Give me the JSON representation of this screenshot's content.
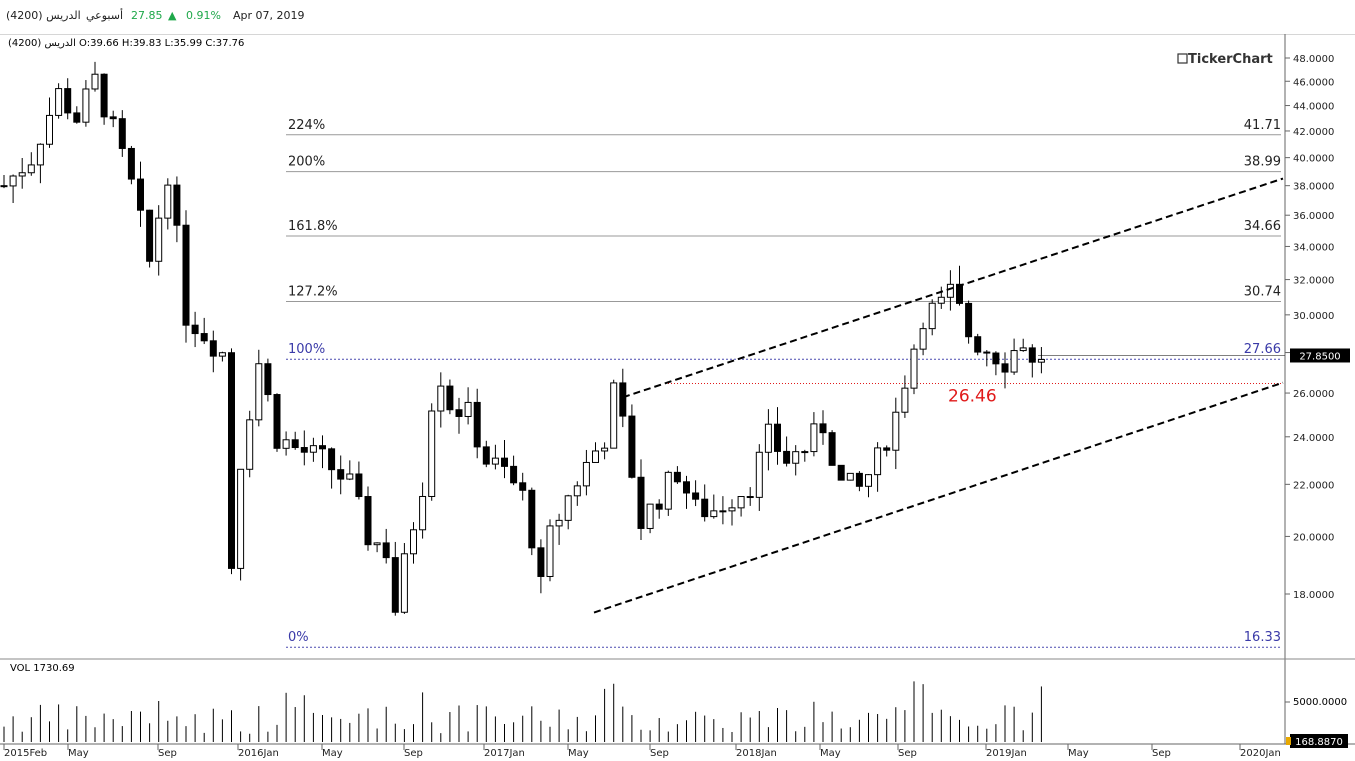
{
  "topbar": {
    "symbol": "الدريس (4200)",
    "period": "أسبوعي",
    "price": "27.85",
    "change": "0.91%",
    "date": "Apr 07, 2019"
  },
  "ohlc_label": "الدريس (4200)  O:39.66 H:39.83 L:35.99 C:37.76",
  "brand": "TickerChart",
  "current_price_tag": "27.8500",
  "annotation_text": "26.46",
  "volume": {
    "label": "VOL  1730.69",
    "tick_label": "5000.0000",
    "current_tag": "168.8870"
  },
  "colors": {
    "candle_up": "#ffffff",
    "candle_down": "#000000",
    "fib_label_blue": "#3a3aa8",
    "annotation_red": "#e01a1a",
    "positive_green": "#1fa84a",
    "grid_line": "#999999"
  },
  "chart_data": {
    "type": "candlestick",
    "x_axis_labels": [
      "2015Feb",
      "May",
      "Sep",
      "2016Jan",
      "May",
      "Sep",
      "2017Jan",
      "May",
      "Sep",
      "2018Jan",
      "May",
      "Sep",
      "2019Jan",
      "May",
      "Sep",
      "2020Jan"
    ],
    "y_ticks": [
      "48.0000",
      "46.0000",
      "44.0000",
      "42.0000",
      "40.0000",
      "38.0000",
      "36.0000",
      "34.0000",
      "32.0000",
      "30.0000",
      "28.0000",
      "26.0000",
      "24.0000",
      "22.0000",
      "20.0000",
      "18.0000"
    ],
    "y_tick_values": [
      48,
      46,
      44,
      42,
      40,
      38,
      36,
      34,
      32,
      30,
      28,
      26,
      24,
      22,
      20,
      18
    ],
    "y_scale": "log",
    "fib_levels": [
      {
        "pct": "224%",
        "value": "41.71",
        "v": 41.71
      },
      {
        "pct": "200%",
        "value": "38.99",
        "v": 38.99
      },
      {
        "pct": "161.8%",
        "value": "34.66",
        "v": 34.66
      },
      {
        "pct": "127.2%",
        "value": "30.74",
        "v": 30.74
      },
      {
        "pct": "100%",
        "value": "27.66",
        "v": 27.66
      },
      {
        "pct": "0%",
        "value": "16.33",
        "v": 16.33
      }
    ],
    "current_price": 27.85,
    "support_level": 26.46,
    "channel": {
      "upper": [
        [
          30,
          25.8
        ],
        [
          63,
          38.5
        ]
      ],
      "lower": [
        [
          30,
          17.4
        ],
        [
          63,
          26.5
        ]
      ]
    },
    "close_path": [
      [
        0,
        38
      ],
      [
        3,
        40
      ],
      [
        6,
        45
      ],
      [
        8,
        43
      ],
      [
        10,
        46
      ],
      [
        11,
        44
      ],
      [
        14,
        38
      ],
      [
        16,
        33
      ],
      [
        18,
        39
      ],
      [
        20,
        30
      ],
      [
        22,
        29
      ],
      [
        24,
        28
      ],
      [
        24.5,
        21
      ],
      [
        25,
        19
      ],
      [
        26,
        23
      ],
      [
        28,
        27.5
      ],
      [
        30,
        24
      ],
      [
        32,
        23.5
      ],
      [
        35,
        23
      ],
      [
        38,
        22
      ],
      [
        40,
        20
      ],
      [
        42,
        19.5
      ],
      [
        43,
        17.5
      ],
      [
        44,
        19
      ],
      [
        46,
        22
      ],
      [
        47.5,
        27.5
      ],
      [
        49,
        25.5
      ],
      [
        51,
        25
      ],
      [
        53,
        23
      ],
      [
        55,
        22.5
      ],
      [
        57,
        21.5
      ],
      [
        58,
        20
      ],
      [
        59,
        18.2
      ],
      [
        60,
        20
      ],
      [
        62,
        21.5
      ],
      [
        64,
        22.8
      ],
      [
        66,
        24
      ],
      [
        67,
        26
      ],
      [
        68,
        24.5
      ],
      [
        70,
        20.5
      ],
      [
        72,
        21.5
      ],
      [
        74,
        22.5
      ],
      [
        76,
        21
      ],
      [
        78,
        21
      ],
      [
        80,
        21.5
      ],
      [
        82,
        22
      ],
      [
        84,
        24
      ],
      [
        86,
        23
      ],
      [
        88,
        23.5
      ],
      [
        90,
        24.5
      ],
      [
        92,
        22
      ],
      [
        94,
        21.8
      ],
      [
        96,
        23
      ],
      [
        98,
        25
      ],
      [
        99.5,
        27.5
      ],
      [
        101,
        30
      ],
      [
        103,
        30.5
      ],
      [
        104,
        31.2
      ],
      [
        105,
        30.2
      ],
      [
        106,
        29
      ],
      [
        107,
        28.5
      ],
      [
        108,
        28.2
      ],
      [
        110,
        27.6
      ],
      [
        112,
        28.6
      ],
      [
        113,
        27.3
      ],
      [
        114,
        27.85
      ]
    ],
    "last_index": 114
  }
}
